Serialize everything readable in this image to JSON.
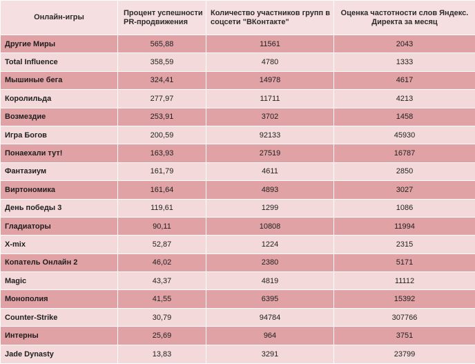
{
  "headers": [
    "Онлайн-игры",
    "Процент успешности PR-продвижения",
    "Количество участников групп в соцсети \"ВКонтакте\"",
    "Оценка частотности слов Яндекс. Директа за месяц"
  ],
  "rows": [
    {
      "name": "Другие Миры",
      "pr": "565,88",
      "vk": "11561",
      "yandex": "2043"
    },
    {
      "name": "Total Influence",
      "pr": "358,59",
      "vk": "4780",
      "yandex": "1333"
    },
    {
      "name": "Мышиные бега",
      "pr": "324,41",
      "vk": "14978",
      "yandex": "4617"
    },
    {
      "name": "Королильда",
      "pr": "277,97",
      "vk": "11711",
      "yandex": "4213"
    },
    {
      "name": "Возмездие",
      "pr": "253,91",
      "vk": "3702",
      "yandex": "1458"
    },
    {
      "name": "Игра Богов",
      "pr": "200,59",
      "vk": "92133",
      "yandex": "45930"
    },
    {
      "name": "Понаехали тут!",
      "pr": "163,93",
      "vk": "27519",
      "yandex": "16787"
    },
    {
      "name": "Фантазиум",
      "pr": "161,79",
      "vk": "4611",
      "yandex": "2850"
    },
    {
      "name": "Виртономика",
      "pr": "161,64",
      "vk": "4893",
      "yandex": "3027"
    },
    {
      "name": "День победы 3",
      "pr": "119,61",
      "vk": "1299",
      "yandex": "1086"
    },
    {
      "name": "Гладиаторы",
      "pr": "90,11",
      "vk": "10808",
      "yandex": "11994"
    },
    {
      "name": "X-mix",
      "pr": "52,87",
      "vk": "1224",
      "yandex": "2315"
    },
    {
      "name": "Копатель Онлайн 2",
      "pr": "46,02",
      "vk": "2380",
      "yandex": "5171"
    },
    {
      "name": "Magic",
      "pr": "43,37",
      "vk": "4819",
      "yandex": "11112"
    },
    {
      "name": "Монополия",
      "pr": "41,55",
      "vk": "6395",
      "yandex": "15392"
    },
    {
      "name": "Counter-Strike",
      "pr": "30,79",
      "vk": "94784",
      "yandex": "307766"
    },
    {
      "name": "Интерны",
      "pr": "25,69",
      "vk": "964",
      "yandex": "3751"
    },
    {
      "name": "Jade Dynasty",
      "pr": "13,83",
      "vk": "3291",
      "yandex": "23799"
    }
  ]
}
